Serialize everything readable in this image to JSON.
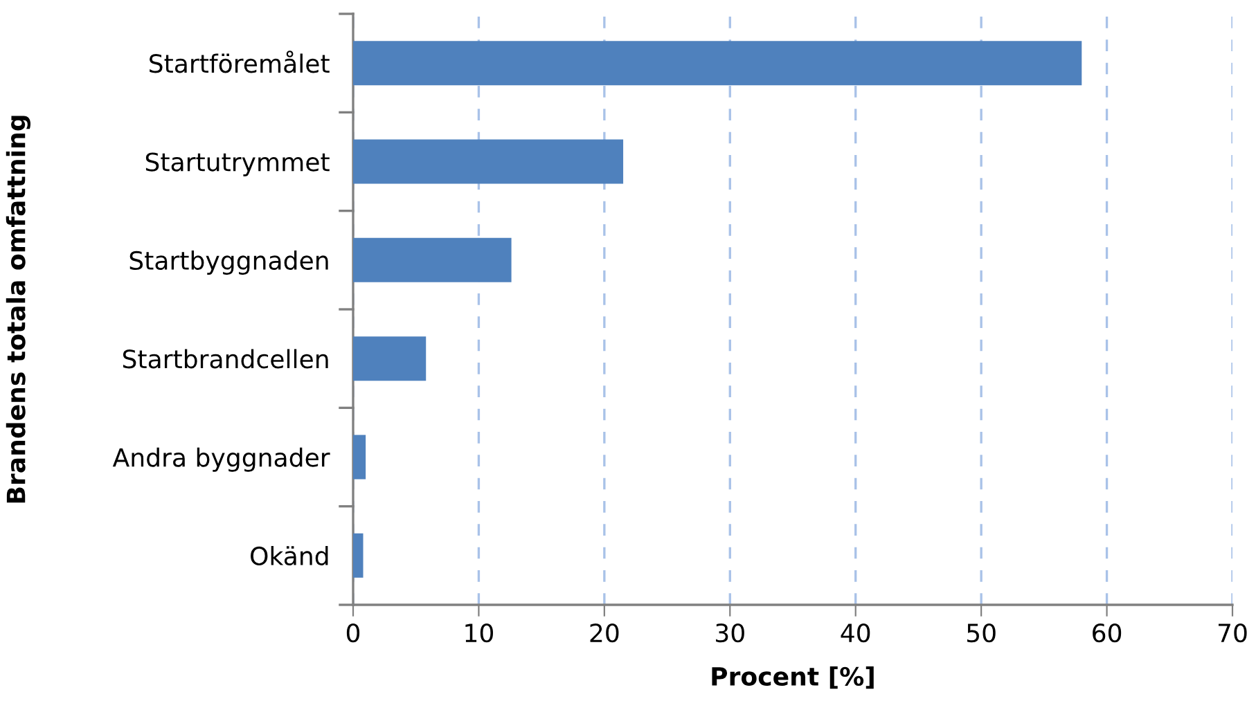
{
  "chart_data": {
    "type": "bar",
    "orientation": "horizontal",
    "xlabel": "Procent [%]",
    "ylabel": "Brandens totala omfattning",
    "categories": [
      "Startföremålet",
      "Startutrymmet",
      "Startbyggnaden",
      "Startbrandcellen",
      "Andra byggnader",
      "Okänd"
    ],
    "values": [
      58.0,
      21.5,
      12.6,
      5.8,
      1.0,
      0.8
    ],
    "color": "#4f81bd",
    "xlim": [
      0,
      70
    ],
    "xticks": [
      0,
      10,
      20,
      30,
      40,
      50,
      60,
      70
    ],
    "grid": "x",
    "line_style": "dashed"
  }
}
